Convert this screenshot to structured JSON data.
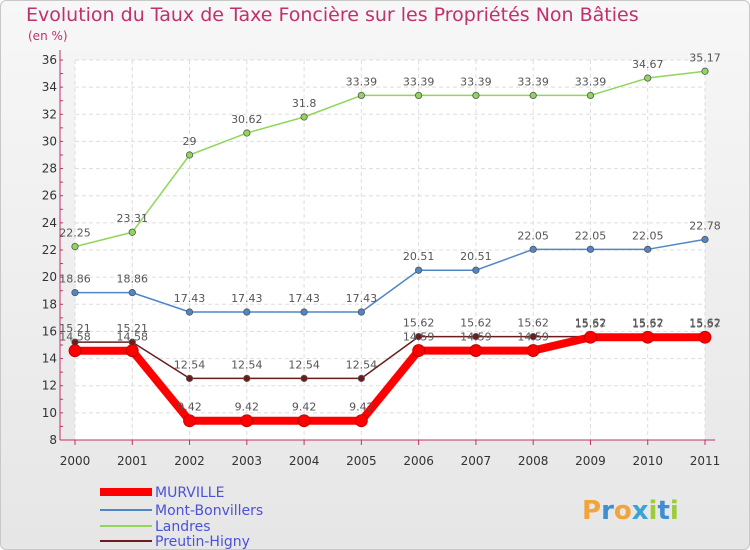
{
  "chart_data": {
    "type": "line",
    "title": "Evolution du Taux de Taxe Foncière sur les Propriétés Non Bâties",
    "ylabel": "(en %)",
    "x": [
      "2000",
      "2001",
      "2002",
      "2003",
      "2004",
      "2005",
      "2006",
      "2007",
      "2008",
      "2009",
      "2010",
      "2011"
    ],
    "ylim": [
      8,
      36
    ],
    "yticks": [
      8,
      10,
      12,
      14,
      16,
      18,
      20,
      22,
      24,
      26,
      28,
      30,
      32,
      34,
      36
    ],
    "grid": true,
    "series": [
      {
        "name": "MURVILLE",
        "color": "#ff0000",
        "values": [
          14.58,
          14.58,
          9.42,
          9.42,
          9.42,
          9.42,
          14.59,
          14.59,
          14.59,
          15.57,
          15.57,
          15.57
        ],
        "labels": [
          "14.58",
          "14.58",
          "9.42",
          "9.42",
          "9.42",
          "9.42",
          "14.59",
          "14.59",
          "14.59",
          "15.57",
          "15.57",
          "15.57"
        ]
      },
      {
        "name": "Mont-Bonvillers",
        "color": "#4f86c6",
        "values": [
          18.86,
          18.86,
          17.43,
          17.43,
          17.43,
          17.43,
          20.51,
          20.51,
          22.05,
          22.05,
          22.05,
          22.78
        ],
        "labels": [
          "18.86",
          "18.86",
          "17.43",
          "17.43",
          "17.43",
          "17.43",
          "20.51",
          "20.51",
          "22.05",
          "22.05",
          "22.05",
          "22.78"
        ]
      },
      {
        "name": "Landres",
        "color": "#8fd65a",
        "values": [
          22.25,
          23.31,
          29,
          30.62,
          31.8,
          33.39,
          33.39,
          33.39,
          33.39,
          33.39,
          34.67,
          35.17
        ],
        "labels": [
          "22.25",
          "23.31",
          "29",
          "30.62",
          "31.8",
          "33.39",
          "33.39",
          "33.39",
          "33.39",
          "33.39",
          "34.67",
          "35.17"
        ]
      },
      {
        "name": "Preutin-Higny",
        "color": "#6b1c1c",
        "values": [
          15.21,
          15.21,
          12.54,
          12.54,
          12.54,
          12.54,
          15.62,
          15.62,
          15.62,
          15.62,
          15.62,
          15.62
        ],
        "labels": [
          "15.21",
          "15.21",
          "12.54",
          "12.54",
          "12.54",
          "12.54",
          "15.62",
          "15.62",
          "15.62",
          "15.62",
          "15.62",
          "15.62"
        ]
      }
    ]
  },
  "brand": {
    "name": "Proxiti",
    "letters": [
      "P",
      "r",
      "o",
      "x",
      "i",
      "t",
      "i"
    ],
    "colors": [
      "#f2a33a",
      "#3d8fd1",
      "#f2a33a",
      "#3aa3d8",
      "#9ccc3a",
      "#3d8fd1",
      "#9ccc3a"
    ]
  }
}
